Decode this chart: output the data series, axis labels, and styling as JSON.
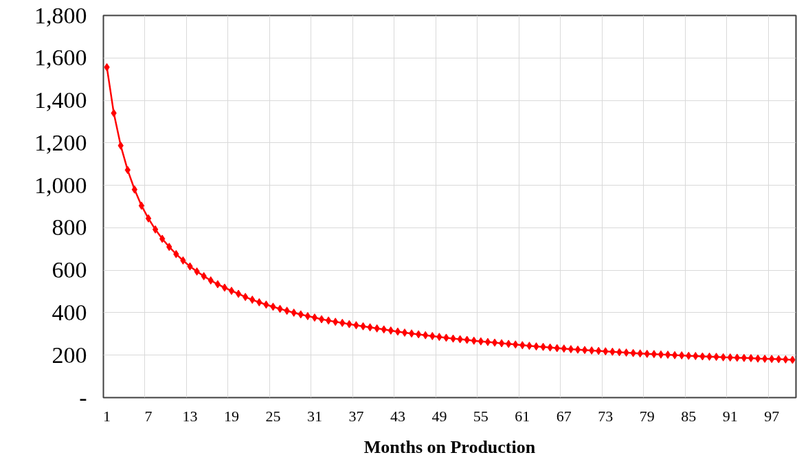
{
  "chart_data": {
    "type": "line",
    "xlabel": "Months on Production",
    "categories": [
      "1",
      null,
      null,
      null,
      null,
      null,
      "7",
      null,
      null,
      null,
      null,
      null,
      "13",
      null,
      null,
      null,
      null,
      null,
      "19",
      null,
      null,
      null,
      null,
      null,
      "25",
      null,
      null,
      null,
      null,
      null,
      "31",
      null,
      null,
      null,
      null,
      null,
      "37",
      null,
      null,
      null,
      null,
      null,
      "43",
      null,
      null,
      null,
      null,
      null,
      "49",
      null,
      null,
      null,
      null,
      null,
      "55",
      null,
      null,
      null,
      null,
      null,
      "61",
      null,
      null,
      null,
      null,
      null,
      "67",
      null,
      null,
      null,
      null,
      null,
      "73",
      null,
      null,
      null,
      null,
      null,
      "79",
      null,
      null,
      null,
      null,
      null,
      "85",
      null,
      null,
      null,
      null,
      null,
      "91",
      null,
      null,
      null,
      null,
      null,
      "97",
      null,
      null,
      null
    ],
    "series": [
      {
        "color": "#ff0000",
        "values": [
          1556,
          1340,
          1187,
          1072,
          980,
          904,
          844,
          792,
          748,
          710,
          676,
          646,
          618,
          594,
          572,
          552,
          534,
          518,
          503,
          489,
          474,
          461,
          449,
          438,
          428,
          418,
          409,
          400,
          392,
          384,
          377,
          369,
          363,
          357,
          352,
          346,
          341,
          336,
          331,
          326,
          321,
          316,
          311,
          306,
          302,
          298,
          294,
          290,
          286,
          282,
          278,
          275,
          272,
          268,
          265,
          262,
          259,
          256,
          253,
          250,
          247,
          244,
          241,
          239,
          236,
          233,
          231,
          228,
          226,
          224,
          222,
          220,
          218,
          216,
          214,
          212,
          210,
          208,
          206,
          205,
          203,
          202,
          200,
          199,
          197,
          196,
          194,
          193,
          192,
          190,
          189,
          188,
          187,
          186,
          184,
          183,
          182,
          181,
          180,
          178
        ]
      }
    ],
    "ylim": [
      0,
      1800
    ],
    "yticks": [
      {
        "value": 0,
        "label": "-"
      },
      {
        "value": 200,
        "label": "200"
      },
      {
        "value": 400,
        "label": "400"
      },
      {
        "value": 600,
        "label": "600"
      },
      {
        "value": 800,
        "label": "800"
      },
      {
        "value": 1000,
        "label": "1,000"
      },
      {
        "value": 1200,
        "label": "1,200"
      },
      {
        "value": 1400,
        "label": "1,400"
      },
      {
        "value": 1600,
        "label": "1,600"
      },
      {
        "value": 1800,
        "label": "1,800"
      }
    ],
    "grid": true,
    "marker": "diamond",
    "line_style": "solid"
  }
}
